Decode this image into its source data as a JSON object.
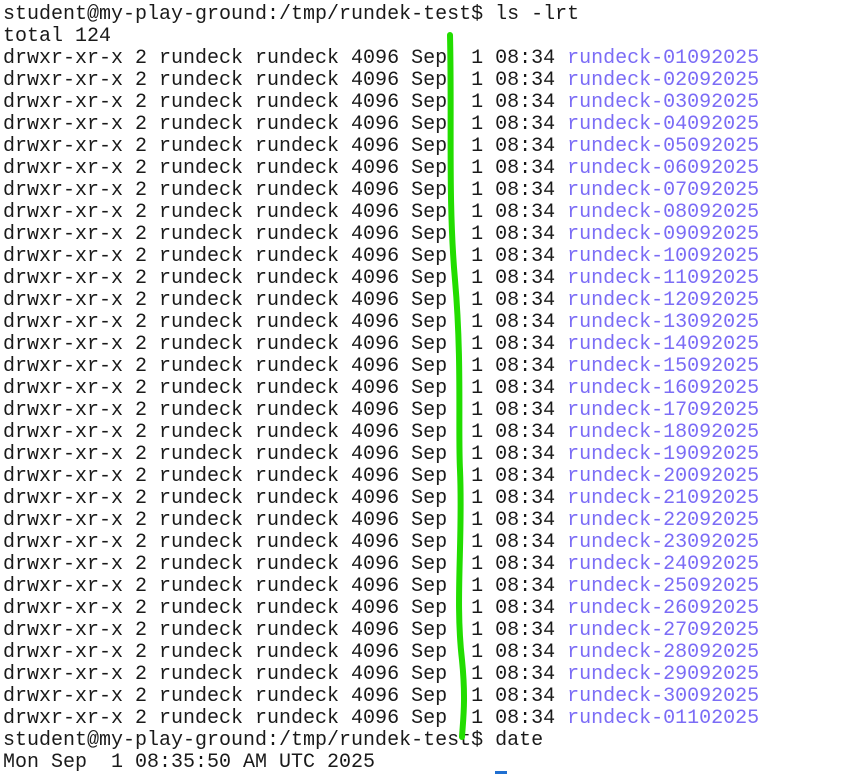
{
  "terminal": {
    "prompt": "student@my-play-ground:/tmp/rundek-test$",
    "command1": "ls -lrt",
    "total": "total 124",
    "entry_prefix": "drwxr-xr-x 2 rundeck rundeck 4096 Sep  1 08:34 ",
    "entries": [
      "rundeck-01092025",
      "rundeck-02092025",
      "rundeck-03092025",
      "rundeck-04092025",
      "rundeck-05092025",
      "rundeck-06092025",
      "rundeck-07092025",
      "rundeck-08092025",
      "rundeck-09092025",
      "rundeck-10092025",
      "rundeck-11092025",
      "rundeck-12092025",
      "rundeck-13092025",
      "rundeck-14092025",
      "rundeck-15092025",
      "rundeck-16092025",
      "rundeck-17092025",
      "rundeck-18092025",
      "rundeck-19092025",
      "rundeck-20092025",
      "rundeck-21092025",
      "rundeck-22092025",
      "rundeck-23092025",
      "rundeck-24092025",
      "rundeck-25092025",
      "rundeck-26092025",
      "rundeck-27092025",
      "rundeck-28092025",
      "rundeck-29092025",
      "rundeck-30092025",
      "rundeck-01102025"
    ],
    "command2": "date",
    "date_output": "Mon Sep  1 08:35:50 AM UTC 2025"
  },
  "colors": {
    "directory": "#7b6cf6",
    "annotation": "#22dd00",
    "cursor": "#1f6fd1"
  }
}
